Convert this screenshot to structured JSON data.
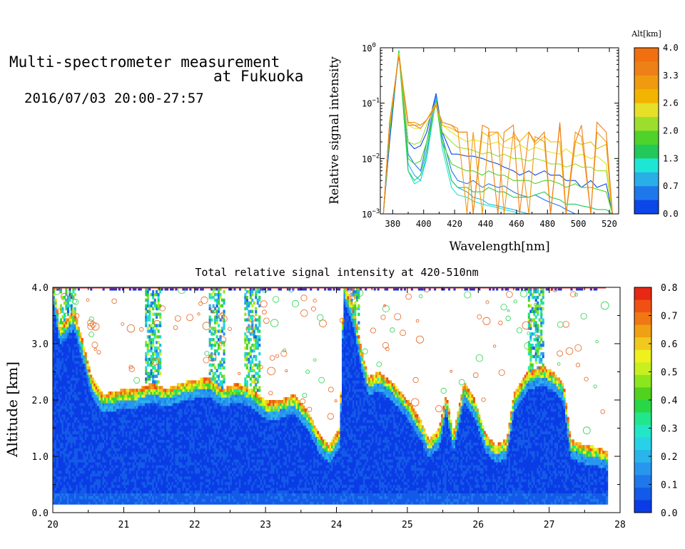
{
  "header": {
    "title_line1": "Multi-spectrometer measurement",
    "title_line2": "at Fukuoka",
    "datetime": "2016/07/03 20:00-27:57"
  },
  "colors": {
    "alt_scale": [
      "#0a46e8",
      "#1e78ec",
      "#29aee8",
      "#1ee6d6",
      "#23c85a",
      "#4fd22a",
      "#9bde2e",
      "#e6e028",
      "#f2b400",
      "#f09a10",
      "#ee8018",
      "#f07010"
    ],
    "intensity_scale": [
      "#0a3ce6",
      "#145ae8",
      "#1e78ec",
      "#2896ee",
      "#2ab4ec",
      "#28d2e6",
      "#22e6c8",
      "#22e68c",
      "#28d746",
      "#50d21e",
      "#8ce61e",
      "#c8f01e",
      "#f0f01e",
      "#f0c81e",
      "#f0a014",
      "#f07814",
      "#f05014",
      "#e62814"
    ]
  },
  "chart_data": [
    {
      "type": "line",
      "title": "",
      "xlabel": "Wavelength[nm]",
      "ylabel": "Relative signal intensity",
      "xlim": [
        372,
        526
      ],
      "ylim": [
        0.001,
        1
      ],
      "yscale": "log",
      "x_ticks": [
        380,
        400,
        420,
        440,
        460,
        480,
        500,
        520
      ],
      "x_tick_labels": [
        "380",
        "400",
        "420",
        "440",
        "460",
        "480",
        "500",
        "520"
      ],
      "y_tick_labels": [
        {
          "base": "10",
          "exp": "0"
        },
        {
          "base": "10",
          "exp": "−1"
        },
        {
          "base": "10",
          "exp": "−2"
        },
        {
          "base": "10",
          "exp": "−3"
        }
      ],
      "colorbar_title": "Alt[km]",
      "colorbar_ticks": [
        "4.0",
        "3.3",
        "2.6",
        "2.0",
        "1.3",
        "0.7",
        "0.0"
      ],
      "grid": false,
      "x": [
        374,
        378,
        384,
        390,
        394,
        398,
        402,
        408,
        412,
        418,
        422,
        428,
        432,
        438,
        442,
        448,
        452,
        458,
        462,
        468,
        472,
        478,
        482,
        488,
        492,
        498,
        502,
        508,
        512,
        518,
        522
      ],
      "series": [
        {
          "alt": 0.0,
          "color": "#0a46e8",
          "values": [
            0.001,
            0.02,
            0.9,
            0.02,
            0.015,
            0.017,
            0.03,
            0.15,
            0.03,
            0.012,
            0.012,
            0.011,
            0.011,
            0.01,
            0.009,
            0.008,
            0.007,
            0.006,
            0.005,
            0.006,
            0.005,
            0.006,
            0.005,
            0.005,
            0.004,
            0.004,
            0.003,
            0.004,
            0.003,
            0.0035,
            0.001
          ]
        },
        {
          "alt": 0.3,
          "color": "#1e78ec",
          "values": [
            0.001,
            0.03,
            0.88,
            0.012,
            0.008,
            0.006,
            0.02,
            0.14,
            0.025,
            0.006,
            0.004,
            0.0035,
            0.004,
            0.003,
            0.0035,
            0.003,
            0.0032,
            0.0025,
            0.0022,
            0.002,
            0.0022,
            0.0018,
            0.0016,
            0.0014,
            0.0012,
            0.001,
            0.001,
            0.001,
            0.001,
            0.001,
            0.001
          ]
        },
        {
          "alt": 0.7,
          "color": "#29aee8",
          "values": [
            0.001,
            0.03,
            0.9,
            0.008,
            0.005,
            0.004,
            0.012,
            0.12,
            0.02,
            0.004,
            0.003,
            0.0025,
            0.002,
            0.0018,
            0.0015,
            0.0014,
            0.0013,
            0.0012,
            0.0011,
            0.001,
            0.001,
            0.001,
            0.001,
            0.001,
            0.001,
            0.001,
            0.001,
            0.001,
            0.001,
            0.001,
            0.001
          ]
        },
        {
          "alt": 1.0,
          "color": "#1ee6d6",
          "values": [
            0.001,
            0.03,
            0.9,
            0.006,
            0.0035,
            0.004,
            0.01,
            0.12,
            0.015,
            0.003,
            0.0022,
            0.002,
            0.0017,
            0.0015,
            0.0014,
            0.0013,
            0.0012,
            0.0011,
            0.001,
            0.001,
            0.001,
            0.001,
            0.001,
            0.001,
            0.001,
            0.001,
            0.001,
            0.001,
            0.001,
            0.001,
            0.001
          ]
        },
        {
          "alt": 1.3,
          "color": "#23c85a",
          "values": [
            0.001,
            0.03,
            0.85,
            0.006,
            0.004,
            0.005,
            0.015,
            0.11,
            0.02,
            0.004,
            0.003,
            0.003,
            0.0025,
            0.0025,
            0.003,
            0.0025,
            0.0025,
            0.002,
            0.002,
            0.002,
            0.0022,
            0.0025,
            0.002,
            0.0018,
            0.0015,
            0.0015,
            0.0014,
            0.0013,
            0.0012,
            0.0012,
            0.001
          ]
        },
        {
          "alt": 1.8,
          "color": "#4fd22a",
          "values": [
            0.001,
            0.03,
            0.85,
            0.01,
            0.008,
            0.009,
            0.02,
            0.1,
            0.02,
            0.008,
            0.007,
            0.006,
            0.006,
            0.005,
            0.006,
            0.005,
            0.005,
            0.004,
            0.004,
            0.004,
            0.0035,
            0.004,
            0.004,
            0.0035,
            0.003,
            0.0035,
            0.003,
            0.003,
            0.0028,
            0.0025,
            0.001
          ]
        },
        {
          "alt": 2.3,
          "color": "#9bde2e",
          "values": [
            0.001,
            0.04,
            0.8,
            0.02,
            0.018,
            0.02,
            0.04,
            0.1,
            0.03,
            0.02,
            0.016,
            0.015,
            0.014,
            0.012,
            0.013,
            0.011,
            0.012,
            0.01,
            0.01,
            0.009,
            0.01,
            0.009,
            0.008,
            0.008,
            0.007,
            0.008,
            0.007,
            0.007,
            0.006,
            0.006,
            0.001
          ]
        },
        {
          "alt": 2.9,
          "color": "#e6e028",
          "values": [
            0.001,
            0.04,
            0.8,
            0.04,
            0.035,
            0.035,
            0.05,
            0.1,
            0.04,
            0.03,
            0.025,
            0.02,
            0.022,
            0.02,
            0.018,
            0.02,
            0.016,
            0.015,
            0.018,
            0.014,
            0.016,
            0.014,
            0.013,
            0.012,
            0.015,
            0.011,
            0.012,
            0.01,
            0.011,
            0.008,
            0.001
          ]
        },
        {
          "alt": 3.3,
          "color": "#f2b400",
          "values": [
            0.001,
            0.045,
            0.75,
            0.045,
            0.04,
            0.04,
            0.05,
            0.1,
            0.04,
            0.035,
            0.03,
            0.03,
            0.001,
            0.03,
            0.025,
            0.03,
            0.02,
            0.025,
            0.02,
            0.03,
            0.018,
            0.025,
            0.02,
            0.02,
            0.001,
            0.02,
            0.018,
            0.02,
            0.015,
            0.018,
            0.001
          ]
        },
        {
          "alt": 3.6,
          "color": "#f09a10",
          "values": [
            0.001,
            0.045,
            0.7,
            0.045,
            0.045,
            0.04,
            0.05,
            0.09,
            0.045,
            0.04,
            0.035,
            0.001,
            0.03,
            0.001,
            0.03,
            0.03,
            0.001,
            0.03,
            0.02,
            0.001,
            0.025,
            0.02,
            0.001,
            0.04,
            0.001,
            0.03,
            0.025,
            0.001,
            0.03,
            0.02,
            0.001
          ]
        },
        {
          "alt": 4.0,
          "color": "#ee8018",
          "values": [
            0.001,
            0.045,
            0.7,
            0.04,
            0.04,
            0.035,
            0.05,
            0.09,
            0.045,
            0.04,
            0.03,
            0.03,
            0.001,
            0.04,
            0.035,
            0.001,
            0.03,
            0.04,
            0.001,
            0.03,
            0.02,
            0.03,
            0.001,
            0.045,
            0.001,
            0.02,
            0.04,
            0.001,
            0.045,
            0.03,
            0.001
          ]
        }
      ]
    },
    {
      "type": "heatmap",
      "title": "Total relative signal intensity at 420-510nm",
      "xlabel": "",
      "ylabel": "Altitude [km]",
      "xlim": [
        20,
        28
      ],
      "ylim": [
        0,
        4
      ],
      "x_ticks": [
        "20",
        "21",
        "22",
        "23",
        "24",
        "25",
        "26",
        "27",
        "28"
      ],
      "y_ticks": [
        "0.0",
        "1.0",
        "2.0",
        "3.0",
        "4.0"
      ],
      "colorbar_ticks": [
        "0.8",
        "0.7",
        "0.6",
        "0.5",
        "0.4",
        "0.3",
        "0.2",
        "0.1",
        "0.0"
      ],
      "colorbar_range": [
        0,
        0.8
      ],
      "data_end_hour": 27.8,
      "noise_floor_km": 0.15,
      "cloud_base_profile": [
        [
          20.0,
          4.0
        ],
        [
          20.1,
          3.2
        ],
        [
          20.3,
          3.5
        ],
        [
          20.45,
          2.8
        ],
        [
          20.55,
          2.3
        ],
        [
          20.7,
          2.0
        ],
        [
          20.9,
          2.05
        ],
        [
          21.0,
          2.1
        ],
        [
          21.2,
          2.1
        ],
        [
          21.4,
          2.2
        ],
        [
          21.6,
          2.1
        ],
        [
          21.8,
          2.2
        ],
        [
          22.0,
          2.25
        ],
        [
          22.2,
          2.3
        ],
        [
          22.4,
          2.1
        ],
        [
          22.6,
          2.2
        ],
        [
          22.8,
          2.1
        ],
        [
          23.0,
          1.9
        ],
        [
          23.2,
          1.9
        ],
        [
          23.4,
          2.0
        ],
        [
          23.6,
          1.7
        ],
        [
          23.75,
          1.3
        ],
        [
          23.9,
          1.1
        ],
        [
          24.05,
          1.4
        ],
        [
          24.1,
          4.0
        ],
        [
          24.25,
          3.5
        ],
        [
          24.35,
          2.8
        ],
        [
          24.45,
          2.3
        ],
        [
          24.6,
          2.4
        ],
        [
          24.8,
          2.2
        ],
        [
          25.0,
          1.9
        ],
        [
          25.2,
          1.5
        ],
        [
          25.3,
          1.2
        ],
        [
          25.45,
          1.4
        ],
        [
          25.55,
          2.0
        ],
        [
          25.65,
          1.3
        ],
        [
          25.8,
          2.2
        ],
        [
          25.95,
          1.9
        ],
        [
          26.1,
          1.3
        ],
        [
          26.25,
          1.1
        ],
        [
          26.4,
          1.2
        ],
        [
          26.5,
          2.0
        ],
        [
          26.7,
          2.4
        ],
        [
          26.9,
          2.5
        ],
        [
          27.05,
          2.4
        ],
        [
          27.2,
          2.2
        ],
        [
          27.3,
          1.2
        ],
        [
          27.5,
          1.1
        ],
        [
          27.7,
          1.05
        ],
        [
          27.8,
          1.0
        ]
      ],
      "plume_hours": [
        20.2,
        21.4,
        22.3,
        22.8,
        24.2,
        26.8
      ]
    }
  ]
}
